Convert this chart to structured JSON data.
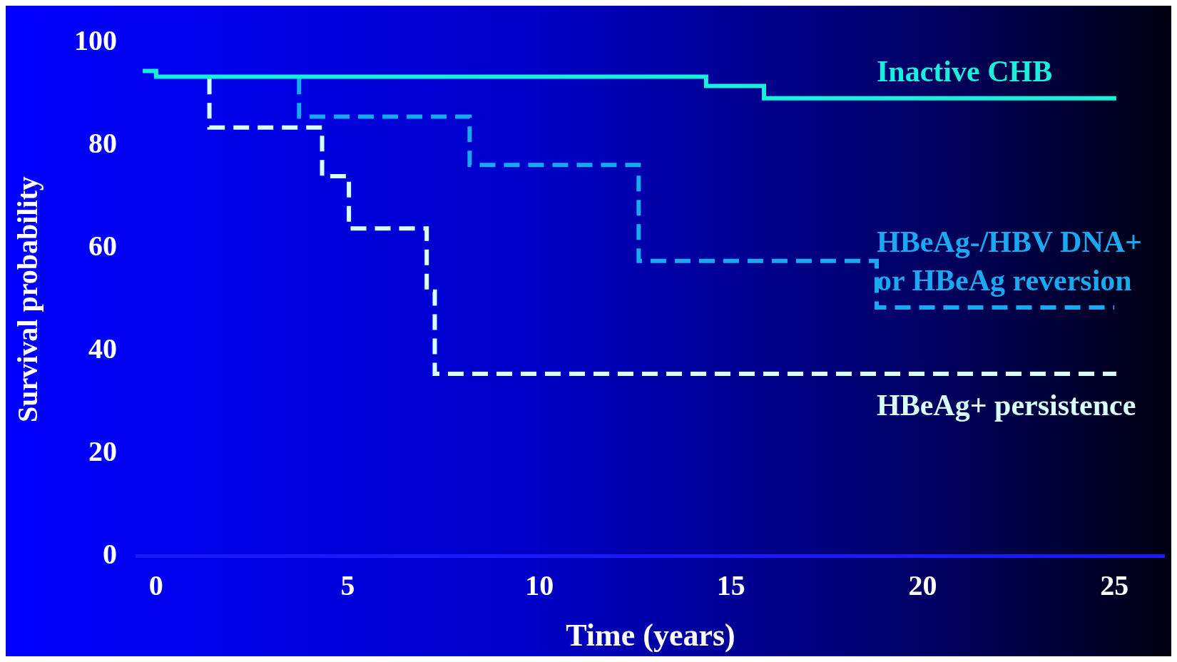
{
  "chart_data": {
    "type": "step",
    "xlabel": "Time (years)",
    "ylabel": "Survival probability",
    "xlim": [
      -0.5,
      26.3
    ],
    "ylim": [
      0,
      100
    ],
    "xticks": [
      0,
      5,
      10,
      15,
      20,
      25
    ],
    "yticks": [
      0,
      20,
      40,
      60,
      80,
      100
    ],
    "grid": false,
    "legend": false,
    "series": [
      {
        "name": "Inactive CHB",
        "color": "#19f0dc",
        "line_style": "solid",
        "x": [
          -0.35,
          0,
          14.35,
          15.86,
          25.05
        ],
        "values": [
          94.5,
          93.4,
          91.6,
          89.2,
          89.2
        ]
      },
      {
        "name": "HBeAg-/HBV DNA+ or HBeAg reversion",
        "color": "#1aa8f0",
        "line_style": "dashed",
        "x": [
          3.73,
          3.73,
          8.18,
          12.59,
          18.8,
          25.0
        ],
        "values": [
          93,
          85.6,
          76.2,
          57.5,
          48.4,
          48.4
        ]
      },
      {
        "name": "HBeAg+ persistence",
        "color": "#d8ffff",
        "line_style": "dashed",
        "x": [
          1.39,
          1.39,
          4.33,
          5.03,
          7.06,
          7.27,
          25.05
        ],
        "values": [
          93,
          83.5,
          74.0,
          63.8,
          51.5,
          35.5,
          35.5
        ]
      }
    ]
  }
}
